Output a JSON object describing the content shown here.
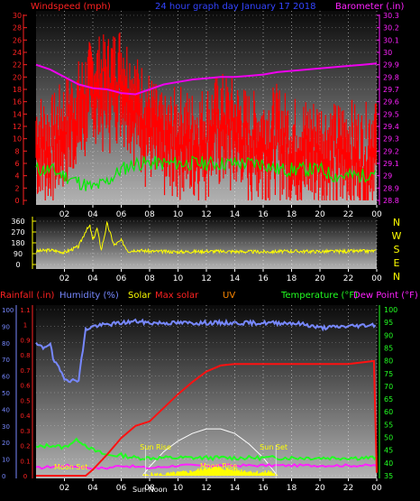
{
  "chart_data": [
    {
      "type": "line",
      "panel": "wind-barometer",
      "title": "24 hour graph day  January 17 2018",
      "left_label": "Windspeed (mph)",
      "right_label": "Barometer (.in)",
      "left_ticks": [
        0,
        2,
        4,
        6,
        8,
        10,
        12,
        14,
        16,
        18,
        20,
        22,
        24,
        26,
        28,
        30
      ],
      "left_ylim": [
        0,
        30
      ],
      "right_ticks": [
        "28.8",
        "28.9",
        "29",
        "29.1",
        "29.2",
        "29.3",
        "29.4",
        "29.5",
        "29.6",
        "29.7",
        "29.8",
        "29.9",
        "30",
        "30.1",
        "30.2",
        "30.3"
      ],
      "right_ylim": [
        28.8,
        30.3
      ],
      "x_ticks": [
        "02",
        "04",
        "06",
        "08",
        "10",
        "12",
        "14",
        "16",
        "18",
        "20",
        "22",
        "00"
      ],
      "xlim": [
        0,
        24
      ],
      "grid": true,
      "colors": {
        "gust": "#ff0000",
        "average": "#00ee00",
        "barometer": "#ee00ee"
      },
      "series": [
        {
          "key": "barometer",
          "x": [
            0,
            1,
            2,
            3,
            4,
            5,
            6,
            7,
            8,
            9,
            10,
            11,
            12,
            13,
            14,
            15,
            16,
            17,
            18,
            19,
            20,
            21,
            22,
            23,
            24
          ],
          "values": [
            29.9,
            29.86,
            29.8,
            29.74,
            29.71,
            29.7,
            29.67,
            29.66,
            29.7,
            29.74,
            29.76,
            29.78,
            29.79,
            29.8,
            29.8,
            29.81,
            29.82,
            29.84,
            29.85,
            29.86,
            29.87,
            29.88,
            29.89,
            29.9,
            29.91
          ]
        },
        {
          "key": "gust",
          "x": [
            0,
            1,
            2,
            3,
            4,
            5,
            6,
            7,
            8,
            9,
            10,
            11,
            12,
            13,
            14,
            15,
            16,
            17,
            18,
            19,
            20,
            21,
            22,
            23,
            24
          ],
          "values": [
            13,
            12,
            15,
            18,
            22,
            22,
            24,
            19,
            16,
            12,
            14,
            13,
            14,
            16,
            15,
            13,
            13,
            14,
            12,
            12,
            12,
            11,
            12,
            10,
            14
          ]
        },
        {
          "key": "average",
          "x": [
            0,
            1,
            2,
            3,
            4,
            5,
            6,
            7,
            8,
            9,
            10,
            11,
            12,
            13,
            14,
            15,
            16,
            17,
            18,
            19,
            20,
            21,
            22,
            23,
            24
          ],
          "values": [
            5,
            5,
            4,
            3,
            2,
            3,
            5,
            6,
            6,
            6,
            6,
            6,
            6,
            6,
            6,
            6,
            6,
            5,
            5,
            5,
            5,
            4,
            4,
            4,
            5
          ]
        }
      ]
    },
    {
      "type": "line",
      "panel": "wind-direction",
      "left_ticks": [
        0,
        90,
        180,
        270,
        360
      ],
      "ylim": [
        0,
        360
      ],
      "compass": [
        "N",
        "W",
        "S",
        "E",
        "N"
      ],
      "x_ticks": [
        "02",
        "04",
        "06",
        "08",
        "10",
        "12",
        "14",
        "16",
        "18",
        "20",
        "22",
        "00"
      ],
      "xlim": [
        0,
        24
      ],
      "colors": {
        "direction": "#ffff00"
      },
      "series": [
        {
          "key": "direction",
          "x": [
            0,
            1,
            2,
            3,
            3.5,
            3.8,
            4,
            4.3,
            4.6,
            5,
            5.5,
            6,
            6.5,
            7,
            8,
            10,
            12,
            14,
            16,
            18,
            20,
            22,
            24
          ],
          "values": [
            110,
            120,
            100,
            150,
            280,
            320,
            200,
            300,
            120,
            340,
            160,
            200,
            110,
            120,
            110,
            105,
            110,
            108,
            105,
            110,
            108,
            110,
            112
          ]
        }
      ]
    },
    {
      "type": "line",
      "panel": "rain-humidity-temp-solar",
      "labels": {
        "rainfall": "Rainfall (.in)",
        "humidity": "Humidity (%)",
        "solar": "Solar",
        "max_solar": "Max solar",
        "uv": "UV",
        "temperature": "Temperature (°F)",
        "dew_point": "Dew Point (°F)"
      },
      "humidity_ticks": [
        0,
        10,
        20,
        30,
        40,
        50,
        60,
        70,
        80,
        90,
        100
      ],
      "humidity_ylim": [
        0,
        100
      ],
      "rain_ticks": [
        "0",
        "0.1",
        "0.2",
        "0.3",
        "0.4",
        "0.5",
        "0.6",
        "0.7",
        "0.8",
        "0.9",
        "1",
        "1.1"
      ],
      "rain_ylim": [
        0,
        1.1
      ],
      "temp_ticks": [
        35,
        40,
        45,
        50,
        55,
        60,
        65,
        70,
        75,
        80,
        85,
        90,
        95,
        100
      ],
      "temp_ylim": [
        35,
        100
      ],
      "x_ticks": [
        "02",
        "04",
        "06",
        "08",
        "10",
        "12",
        "14",
        "16",
        "18",
        "20",
        "22",
        "00"
      ],
      "xlim": [
        0,
        24
      ],
      "annotations": {
        "sun_rise": "Sun Rise",
        "sun_set": "Sun Set",
        "moon_set": "Moon Set",
        "moon_rise": "Moon Rise",
        "sun_noon": "Sun Noon"
      },
      "colors": {
        "humidity": "#7788ff",
        "rain": "#ff1111",
        "temperature": "#22ff22",
        "dew_point": "#ff22ff",
        "max_solar": "#ffffff",
        "solar": "#ffff00",
        "uv": "#ff8800"
      },
      "series": [
        {
          "key": "humidity",
          "x": [
            0,
            0.5,
            1,
            1.2,
            1.5,
            2,
            2.5,
            3,
            3.5,
            4,
            5,
            6,
            7,
            8,
            10,
            12,
            14,
            16,
            18,
            19,
            20,
            22,
            24
          ],
          "values": [
            79,
            77,
            80,
            70,
            66,
            59,
            57,
            58,
            88,
            90,
            91,
            92,
            93,
            92,
            92,
            92,
            92,
            92,
            92,
            91,
            89,
            90,
            91
          ]
        },
        {
          "key": "rain",
          "x": [
            0,
            1,
            2,
            3,
            3.5,
            4,
            5,
            6,
            7,
            8,
            9,
            10,
            11,
            12,
            13,
            14,
            16,
            18,
            20,
            22,
            23.8,
            24
          ],
          "values": [
            0,
            0,
            0,
            0,
            0,
            0.04,
            0.14,
            0.25,
            0.33,
            0.36,
            0.45,
            0.54,
            0.62,
            0.69,
            0.73,
            0.74,
            0.74,
            0.74,
            0.74,
            0.74,
            0.76,
            0.02
          ]
        },
        {
          "key": "temperature",
          "x": [
            0,
            1,
            2,
            2.5,
            3,
            4,
            5,
            6,
            7,
            8,
            10,
            12,
            14,
            16,
            18,
            20,
            22,
            24
          ],
          "values": [
            46,
            47,
            46,
            48,
            49,
            45,
            43,
            43,
            42,
            42,
            42,
            42,
            42,
            42,
            42,
            42,
            42,
            42
          ]
        },
        {
          "key": "dew_point",
          "x": [
            0,
            2,
            4,
            5,
            6,
            8,
            10,
            12,
            14,
            16,
            18,
            20,
            22,
            24
          ],
          "values": [
            38,
            39,
            38,
            38,
            39,
            38,
            39,
            39,
            39,
            39,
            39,
            39,
            39,
            39
          ]
        },
        {
          "key": "max_solar",
          "x": [
            7.5,
            8,
            9,
            10,
            11,
            12,
            12.5,
            13,
            14,
            15,
            16,
            17
          ],
          "values": [
            0,
            0.06,
            0.16,
            0.23,
            0.28,
            0.31,
            0.31,
            0.31,
            0.28,
            0.21,
            0.12,
            0
          ]
        },
        {
          "key": "solar",
          "x": [
            7.5,
            8,
            9,
            10,
            11,
            11.5,
            12,
            12.5,
            13,
            14,
            15,
            16,
            16.5,
            17
          ],
          "values": [
            0,
            0.01,
            0.01,
            0.02,
            0.03,
            0.04,
            0.05,
            0.06,
            0.05,
            0.04,
            0.03,
            0.02,
            0.03,
            0
          ]
        }
      ]
    }
  ]
}
